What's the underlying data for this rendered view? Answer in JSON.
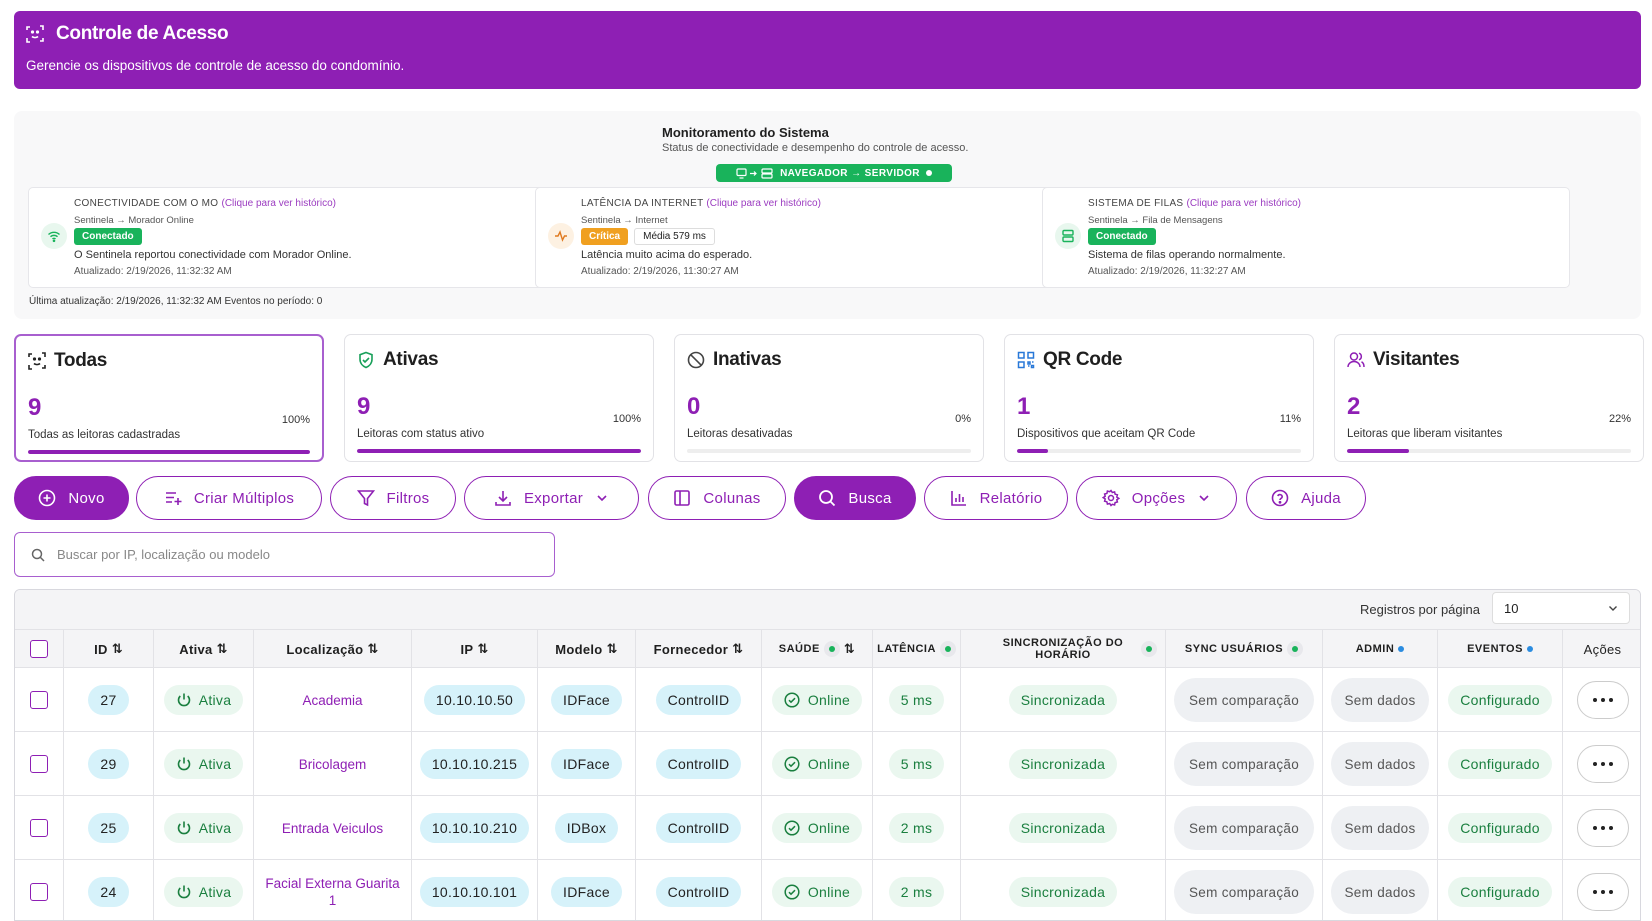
{
  "header": {
    "title": "Controle de Acesso",
    "subtitle": "Gerencie os dispositivos de controle de acesso do condomínio."
  },
  "monitor": {
    "title": "Monitoramento do Sistema",
    "subtitle": "Status de conectividade e desempenho do controle de acesso.",
    "path_pill": "NAVEGADOR → SERVIDOR",
    "cards": [
      {
        "title": "CONECTIVIDADE COM O MO",
        "link": "(Clique para ver histórico)",
        "path": "Sentinela → Morador Online",
        "badge": "Conectado",
        "desc": "O Sentinela reportou conectividade com Morador Online.",
        "updated": "Atualizado: 2/19/2026, 11:32:32 AM"
      },
      {
        "title": "LATÊNCIA DA INTERNET",
        "link": "(Clique para ver histórico)",
        "path": "Sentinela → Internet",
        "badge": "Crítica",
        "badge2": "Média 579 ms",
        "desc": "Latência muito acima do esperado.",
        "updated": "Atualizado: 2/19/2026, 11:30:27 AM"
      },
      {
        "title": "SISTEMA DE FILAS",
        "link": "(Clique para ver histórico)",
        "path": "Sentinela → Fila de Mensagens",
        "badge": "Conectado",
        "desc": "Sistema de filas operando normalmente.",
        "updated": "Atualizado: 2/19/2026, 11:32:27 AM"
      }
    ],
    "footer": "Última atualização: 2/19/2026, 11:32:32 AM   Eventos no período: 0"
  },
  "stats": [
    {
      "label": "Todas",
      "value": "9",
      "pct": "100%",
      "fill": 1.0,
      "desc": "Todas as leitoras cadastradas"
    },
    {
      "label": "Ativas",
      "value": "9",
      "pct": "100%",
      "fill": 1.0,
      "desc": "Leitoras com status ativo"
    },
    {
      "label": "Inativas",
      "value": "0",
      "pct": "0%",
      "fill": 0.0,
      "desc": "Leitoras desativadas"
    },
    {
      "label": "QR Code",
      "value": "1",
      "pct": "11%",
      "fill": 0.11,
      "desc": "Dispositivos que aceitam QR Code"
    },
    {
      "label": "Visitantes",
      "value": "2",
      "pct": "22%",
      "fill": 0.22,
      "desc": "Leitoras que liberam visitantes"
    }
  ],
  "toolbar": {
    "novo": "Novo",
    "criar": "Criar Múltiplos",
    "filtros": "Filtros",
    "exportar": "Exportar",
    "colunas": "Colunas",
    "busca": "Busca",
    "relatorio": "Relatório",
    "opcoes": "Opções",
    "ajuda": "Ajuda"
  },
  "search": {
    "placeholder": "Buscar por IP, localização ou modelo",
    "value": ""
  },
  "table": {
    "records_label": "Registros por página",
    "records_value": "10",
    "headers": {
      "id": "ID",
      "ativa": "Ativa",
      "localizacao": "Localização",
      "ip": "IP",
      "modelo": "Modelo",
      "fornecedor": "Fornecedor",
      "saude": "SAÚDE",
      "latencia": "LATÊNCIA",
      "sincronizacao": "SINCRONIZAÇÃO DO HORÁRIO",
      "sync": "SYNC USUÁRIOS",
      "admin": "ADMIN",
      "eventos": "EVENTOS",
      "acoes": "Ações"
    },
    "rows": [
      {
        "id": "27",
        "ativa": "Ativa",
        "loc": "Academia",
        "ip": "10.10.10.50",
        "modelo": "IDFace",
        "forn": "ControlID",
        "saude": "Online",
        "lat": "5 ms",
        "sinc": "Sincronizada",
        "sync": "Sem comparação",
        "admin": "Sem dados",
        "eventos": "Configurado"
      },
      {
        "id": "29",
        "ativa": "Ativa",
        "loc": "Bricolagem",
        "ip": "10.10.10.215",
        "modelo": "IDFace",
        "forn": "ControlID",
        "saude": "Online",
        "lat": "5 ms",
        "sinc": "Sincronizada",
        "sync": "Sem comparação",
        "admin": "Sem dados",
        "eventos": "Configurado"
      },
      {
        "id": "25",
        "ativa": "Ativa",
        "loc": "Entrada Veiculos",
        "ip": "10.10.10.210",
        "modelo": "IDBox",
        "forn": "ControlID",
        "saude": "Online",
        "lat": "2 ms",
        "sinc": "Sincronizada",
        "sync": "Sem comparação",
        "admin": "Sem dados",
        "eventos": "Configurado"
      },
      {
        "id": "24",
        "ativa": "Ativa",
        "loc": "Facial Externa Guarita 1",
        "ip": "10.10.10.101",
        "modelo": "IDFace",
        "forn": "ControlID",
        "saude": "Online",
        "lat": "2 ms",
        "sinc": "Sincronizada",
        "sync": "Sem comparação",
        "admin": "Sem dados",
        "eventos": "Configurado"
      }
    ]
  },
  "colors": {
    "primary": "#8e1fb4",
    "success": "#19b35b",
    "warning": "#f0a020"
  }
}
